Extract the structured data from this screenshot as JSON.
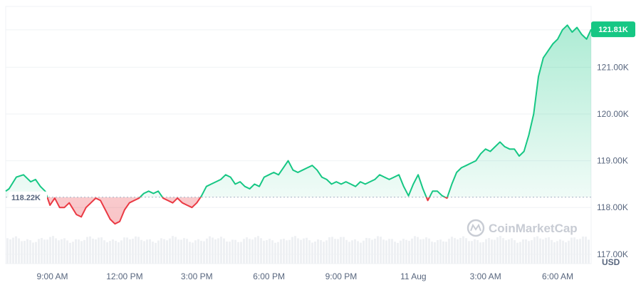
{
  "chart_data": {
    "type": "area",
    "watermark": "CoinMarketCap",
    "y_unit": "USD",
    "ylim": [
      116800,
      122300
    ],
    "grid": true,
    "baseline": {
      "value": 118220,
      "label": "118.22K"
    },
    "current": {
      "value": 121810,
      "label": "121.81K"
    },
    "colors": {
      "up": "#16c784",
      "down": "#ea3943",
      "up_fill": "#16c784",
      "down_fill": "#ea3943"
    },
    "y_ticks": [
      {
        "value": 117000,
        "label": "117.00K"
      },
      {
        "value": 118000,
        "label": "118.00K"
      },
      {
        "value": 119000,
        "label": "119.00K"
      },
      {
        "value": 120000,
        "label": "120.00K"
      },
      {
        "value": 121000,
        "label": "121.00K"
      }
    ],
    "x_ticks": [
      {
        "t": 9,
        "label": "9:00 AM"
      },
      {
        "t": 12,
        "label": "12:00 PM"
      },
      {
        "t": 15,
        "label": "3:00 PM"
      },
      {
        "t": 18,
        "label": "6:00 PM"
      },
      {
        "t": 21,
        "label": "9:00 PM"
      },
      {
        "t": 24,
        "label": "11 Aug"
      },
      {
        "t": 27,
        "label": "3:00 AM"
      },
      {
        "t": 30,
        "label": "6:00 AM"
      }
    ],
    "xlim": [
      7.06,
      31.39
    ],
    "series": [
      {
        "values": [
          [
            7.06,
            118350
          ],
          [
            7.2,
            118400
          ],
          [
            7.5,
            118650
          ],
          [
            7.8,
            118700
          ],
          [
            8.1,
            118550
          ],
          [
            8.3,
            118600
          ],
          [
            8.5,
            118450
          ],
          [
            8.7,
            118350
          ],
          [
            8.9,
            118050
          ],
          [
            9.1,
            118200
          ],
          [
            9.3,
            118000
          ],
          [
            9.5,
            118000
          ],
          [
            9.7,
            118100
          ],
          [
            10.0,
            117850
          ],
          [
            10.2,
            117800
          ],
          [
            10.4,
            118000
          ],
          [
            10.6,
            118100
          ],
          [
            10.8,
            118200
          ],
          [
            11.0,
            118150
          ],
          [
            11.2,
            117950
          ],
          [
            11.4,
            117750
          ],
          [
            11.6,
            117650
          ],
          [
            11.8,
            117700
          ],
          [
            12.0,
            117950
          ],
          [
            12.2,
            118100
          ],
          [
            12.4,
            118150
          ],
          [
            12.6,
            118200
          ],
          [
            12.8,
            118300
          ],
          [
            13.0,
            118350
          ],
          [
            13.2,
            118300
          ],
          [
            13.4,
            118350
          ],
          [
            13.6,
            118200
          ],
          [
            13.8,
            118150
          ],
          [
            14.0,
            118100
          ],
          [
            14.2,
            118200
          ],
          [
            14.4,
            118100
          ],
          [
            14.6,
            118050
          ],
          [
            14.8,
            118000
          ],
          [
            15.0,
            118100
          ],
          [
            15.2,
            118250
          ],
          [
            15.4,
            118450
          ],
          [
            15.6,
            118500
          ],
          [
            15.8,
            118550
          ],
          [
            16.0,
            118600
          ],
          [
            16.2,
            118700
          ],
          [
            16.4,
            118650
          ],
          [
            16.6,
            118500
          ],
          [
            16.8,
            118550
          ],
          [
            17.0,
            118450
          ],
          [
            17.2,
            118400
          ],
          [
            17.4,
            118500
          ],
          [
            17.6,
            118450
          ],
          [
            17.8,
            118650
          ],
          [
            18.0,
            118700
          ],
          [
            18.2,
            118750
          ],
          [
            18.4,
            118700
          ],
          [
            18.6,
            118850
          ],
          [
            18.8,
            119000
          ],
          [
            19.0,
            118800
          ],
          [
            19.2,
            118750
          ],
          [
            19.4,
            118800
          ],
          [
            19.6,
            118850
          ],
          [
            19.8,
            118900
          ],
          [
            20.0,
            118800
          ],
          [
            20.2,
            118650
          ],
          [
            20.4,
            118600
          ],
          [
            20.6,
            118500
          ],
          [
            20.8,
            118550
          ],
          [
            21.0,
            118500
          ],
          [
            21.2,
            118550
          ],
          [
            21.4,
            118500
          ],
          [
            21.6,
            118450
          ],
          [
            21.8,
            118550
          ],
          [
            22.0,
            118500
          ],
          [
            22.2,
            118550
          ],
          [
            22.4,
            118600
          ],
          [
            22.6,
            118700
          ],
          [
            22.8,
            118650
          ],
          [
            23.0,
            118600
          ],
          [
            23.2,
            118650
          ],
          [
            23.4,
            118700
          ],
          [
            23.6,
            118450
          ],
          [
            23.8,
            118250
          ],
          [
            24.0,
            118500
          ],
          [
            24.2,
            118700
          ],
          [
            24.4,
            118400
          ],
          [
            24.6,
            118150
          ],
          [
            24.8,
            118350
          ],
          [
            25.0,
            118350
          ],
          [
            25.2,
            118250
          ],
          [
            25.4,
            118200
          ],
          [
            25.6,
            118500
          ],
          [
            25.8,
            118750
          ],
          [
            26.0,
            118850
          ],
          [
            26.2,
            118900
          ],
          [
            26.4,
            118950
          ],
          [
            26.6,
            119000
          ],
          [
            26.8,
            119150
          ],
          [
            27.0,
            119250
          ],
          [
            27.2,
            119200
          ],
          [
            27.4,
            119300
          ],
          [
            27.6,
            119400
          ],
          [
            27.8,
            119300
          ],
          [
            28.0,
            119250
          ],
          [
            28.2,
            119250
          ],
          [
            28.4,
            119100
          ],
          [
            28.6,
            119200
          ],
          [
            28.8,
            119550
          ],
          [
            29.0,
            120000
          ],
          [
            29.2,
            120800
          ],
          [
            29.4,
            121200
          ],
          [
            29.6,
            121350
          ],
          [
            29.8,
            121500
          ],
          [
            30.0,
            121600
          ],
          [
            30.2,
            121800
          ],
          [
            30.4,
            121900
          ],
          [
            30.6,
            121750
          ],
          [
            30.8,
            121850
          ],
          [
            31.0,
            121700
          ],
          [
            31.2,
            121600
          ],
          [
            31.39,
            121810
          ]
        ]
      }
    ]
  }
}
